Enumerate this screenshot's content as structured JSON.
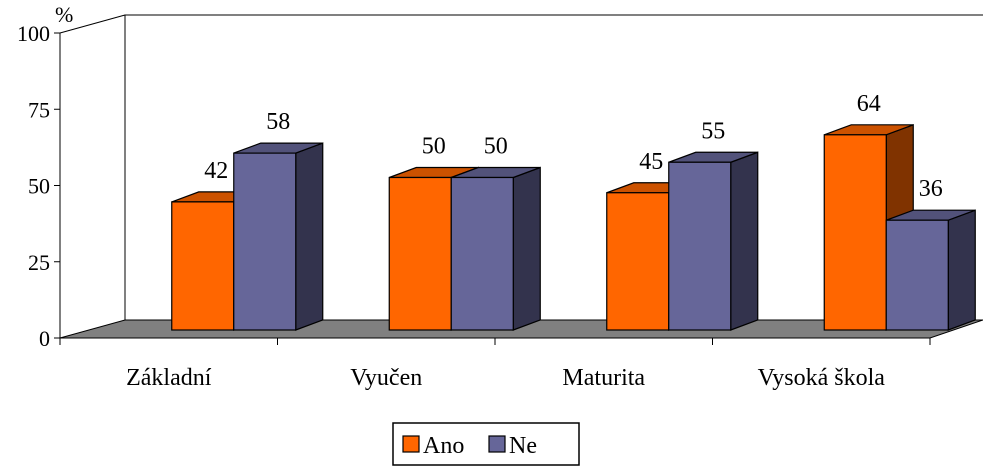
{
  "chart_data": {
    "type": "bar",
    "title": "",
    "xlabel": "",
    "ylabel": "%",
    "ylim": [
      0,
      100
    ],
    "yticks": [
      0,
      25,
      50,
      75,
      100
    ],
    "categories": [
      "Základní",
      "Vyučen",
      "Maturita",
      "Vysoká škola"
    ],
    "series": [
      {
        "name": "Ano",
        "values": [
          42,
          50,
          45,
          64
        ],
        "color": "#ff6600"
      },
      {
        "name": "Ne",
        "values": [
          58,
          50,
          55,
          36
        ],
        "color": "#666699"
      }
    ],
    "grid": false,
    "legend_position": "bottom-center",
    "style": "3d-clustered"
  }
}
